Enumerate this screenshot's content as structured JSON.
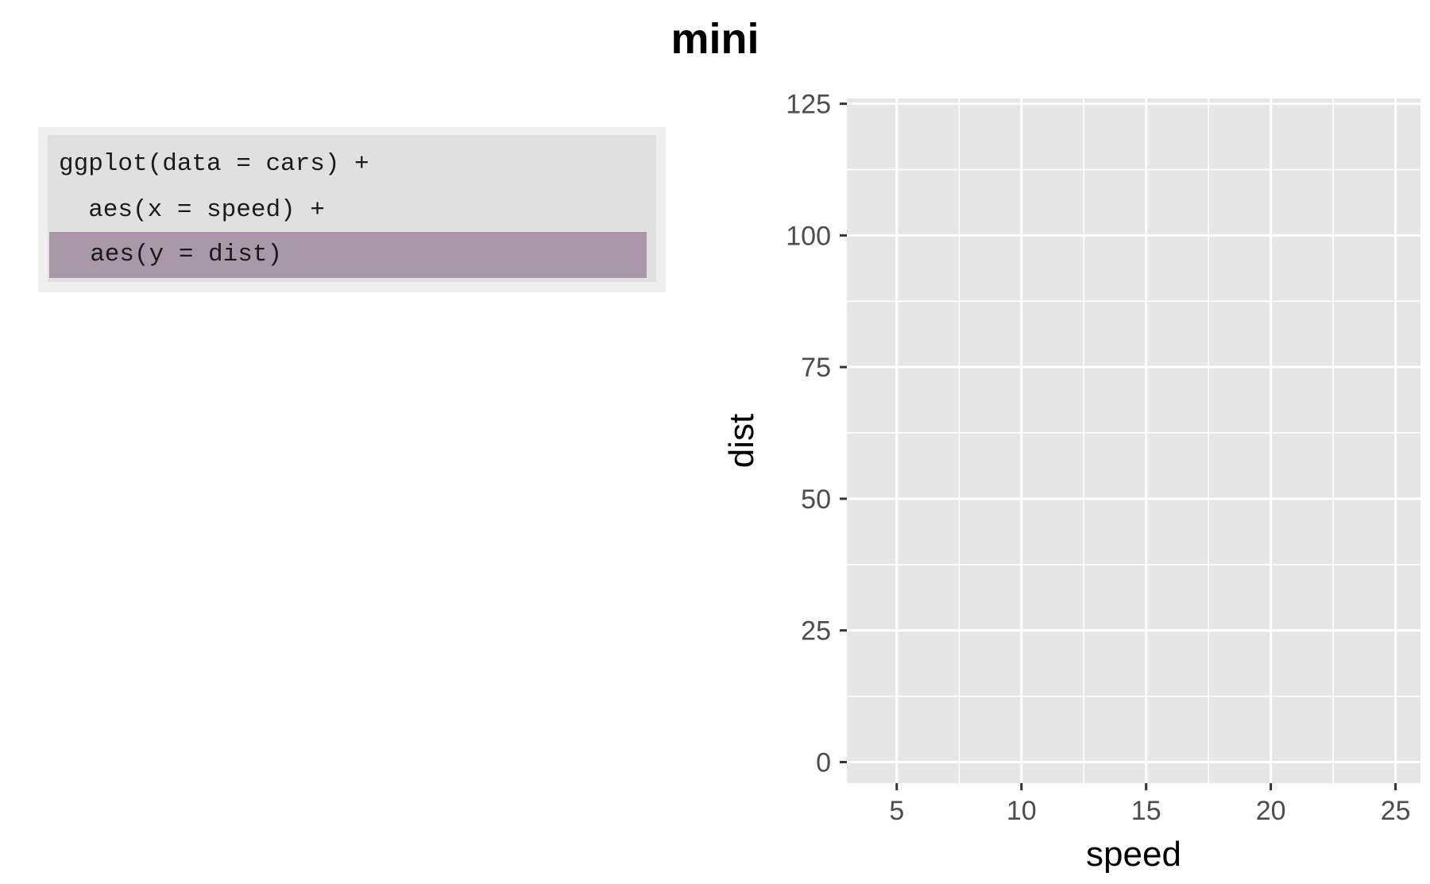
{
  "title": "mini",
  "code": {
    "lines": [
      "ggplot(data = cars) +",
      "  aes(x = speed) +",
      "  aes(y = dist)"
    ],
    "highlight_color": "#a997aa"
  },
  "chart_data": {
    "type": "scatter",
    "title": "",
    "xlabel": "speed",
    "ylabel": "dist",
    "xlim": [
      3,
      26
    ],
    "ylim": [
      -4,
      126
    ],
    "x_ticks": [
      5,
      10,
      15,
      20,
      25
    ],
    "y_ticks": [
      0,
      25,
      50,
      75,
      100,
      125
    ],
    "series": [],
    "grid": true,
    "panel_color": "#e6e6e6",
    "grid_color": "#ffffff"
  }
}
